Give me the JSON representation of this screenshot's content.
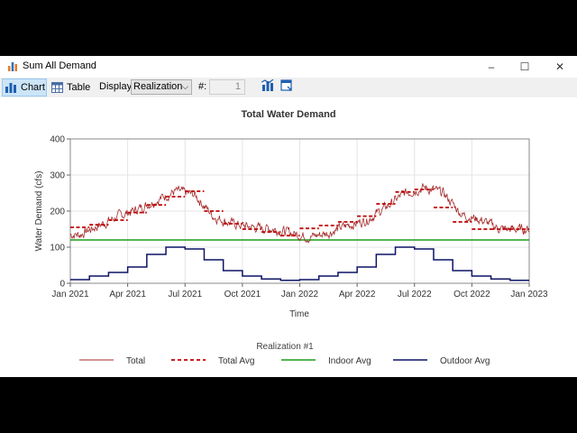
{
  "window": {
    "title": "Sum All Demand",
    "controls": {
      "minimize": "–",
      "maximize": "☐",
      "close": "✕"
    }
  },
  "toolbar": {
    "chart_label": "Chart",
    "table_label": "Table",
    "display_label": "Display:",
    "display_value": "Realization",
    "number_label": "#:",
    "number_value": "1",
    "icons": [
      "chart-options-icon",
      "export-icon"
    ]
  },
  "chart_data": {
    "type": "line",
    "title": "Total Water Demand",
    "xlabel": "Time",
    "ylabel": "Water Demand (cfs)",
    "ylim": [
      0,
      400
    ],
    "yticks": [
      "0",
      "100",
      "200",
      "300",
      "400"
    ],
    "x_tick_labels": [
      "Jan 2021",
      "Apr 2021",
      "Jul 2021",
      "Oct 2021",
      "Jan 2022",
      "Apr 2022",
      "Jul 2022",
      "Oct 2022",
      "Jan 2023"
    ],
    "x_range": [
      "2021-01-01",
      "2023-01-01"
    ],
    "grid": true,
    "legend_title": "Realization #1",
    "legend_position": "bottom",
    "months": [
      "2021-01",
      "2021-02",
      "2021-03",
      "2021-04",
      "2021-05",
      "2021-06",
      "2021-07",
      "2021-08",
      "2021-09",
      "2021-10",
      "2021-11",
      "2021-12",
      "2022-01",
      "2022-02",
      "2022-03",
      "2022-04",
      "2022-05",
      "2022-06",
      "2022-07",
      "2022-08",
      "2022-09",
      "2022-10",
      "2022-11",
      "2022-12"
    ],
    "series": [
      {
        "name": "Total",
        "color": "#a52a2a",
        "style": "solid-thin",
        "values": [
          135,
          160,
          185,
          205,
          230,
          255,
          245,
          185,
          165,
          155,
          152,
          140,
          128,
          140,
          160,
          175,
          210,
          250,
          265,
          250,
          190,
          175,
          150,
          150
        ]
      },
      {
        "name": "Total Avg",
        "color": "#c00000",
        "style": "dashed",
        "values": [
          155,
          162,
          175,
          196,
          217,
          240,
          255,
          200,
          165,
          150,
          142,
          132,
          152,
          160,
          170,
          186,
          220,
          253,
          260,
          210,
          170,
          150,
          150,
          150
        ]
      },
      {
        "name": "Indoor Avg",
        "color": "#1a9e1a",
        "style": "solid",
        "values": [
          120,
          120,
          120,
          120,
          120,
          120,
          120,
          120,
          120,
          120,
          120,
          120,
          120,
          120,
          120,
          120,
          120,
          120,
          120,
          120,
          120,
          120,
          120,
          120
        ]
      },
      {
        "name": "Outdoor Avg",
        "color": "#0d1466",
        "style": "step",
        "values": [
          10,
          20,
          30,
          45,
          80,
          100,
          95,
          65,
          35,
          20,
          12,
          8,
          10,
          20,
          30,
          45,
          80,
          100,
          95,
          65,
          35,
          20,
          12,
          8
        ]
      }
    ]
  }
}
